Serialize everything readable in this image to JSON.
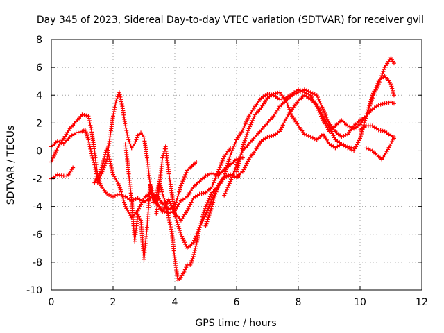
{
  "chart_data": {
    "type": "scatter",
    "title": "Day 345 of 2023, Sidereal Day-to-day VTEC variation (SDTVAR) for receiver gvil",
    "xlabel": "GPS time / hours",
    "ylabel": "SDTVAR / TECUs",
    "xlim": [
      0,
      12
    ],
    "ylim": [
      -10,
      8
    ],
    "xticks": [
      0,
      2,
      4,
      6,
      8,
      10,
      12
    ],
    "yticks": [
      -10,
      -8,
      -6,
      -4,
      -2,
      0,
      2,
      4,
      6,
      8
    ],
    "grid": true,
    "marker": "plus",
    "color": "#ff0000",
    "series": [
      {
        "name": "track-1",
        "x": [
          0.0,
          0.2,
          0.4,
          0.6,
          0.8,
          1.0,
          1.2,
          1.3,
          1.4,
          1.5,
          1.6,
          1.8,
          2.0,
          2.2,
          2.4,
          2.6,
          2.8,
          3.0,
          3.2,
          3.4,
          3.6,
          3.8,
          4.0,
          4.2,
          4.4,
          4.6,
          4.7
        ],
        "y": [
          -0.8,
          0.2,
          0.9,
          1.6,
          2.1,
          2.6,
          2.5,
          1.5,
          0.0,
          -1.8,
          -2.5,
          -3.1,
          -3.3,
          -3.1,
          -3.3,
          -3.6,
          -3.4,
          -3.7,
          -3.4,
          -3.2,
          -3.8,
          -4.2,
          -4.0,
          -2.5,
          -1.4,
          -1.0,
          -0.8
        ]
      },
      {
        "name": "track-2",
        "x": [
          0.0,
          0.2,
          0.4,
          0.6,
          0.8,
          1.0,
          1.1,
          1.2,
          1.3,
          1.4,
          1.5,
          1.6,
          1.8,
          1.9,
          2.0,
          2.1,
          2.2,
          2.3,
          2.4,
          2.5,
          2.6,
          2.7,
          2.8,
          2.9,
          3.0,
          3.1,
          3.2,
          3.4,
          3.6,
          3.8,
          4.0,
          4.2,
          4.4,
          4.6,
          4.8,
          5.0,
          5.2,
          5.4,
          5.6,
          5.8,
          6.0,
          6.2
        ],
        "y": [
          0.3,
          0.7,
          0.5,
          1.0,
          1.3,
          1.4,
          1.5,
          0.8,
          -0.2,
          -1.0,
          -2.3,
          -1.8,
          -0.6,
          1.0,
          2.5,
          3.6,
          4.2,
          3.2,
          1.8,
          0.8,
          0.2,
          0.5,
          1.1,
          1.3,
          1.0,
          -0.5,
          -2.4,
          -3.8,
          -4.3,
          -4.5,
          -4.3,
          -3.6,
          -3.3,
          -2.6,
          -2.2,
          -1.8,
          -1.6,
          -1.8,
          -1.3,
          -1.0,
          -0.6,
          -0.5
        ]
      },
      {
        "name": "track-3",
        "x": [
          0.0,
          0.2,
          0.4,
          0.5,
          0.6,
          0.7
        ],
        "y": [
          -2.0,
          -1.7,
          -1.8,
          -1.8,
          -1.6,
          -1.2
        ]
      },
      {
        "name": "track-4",
        "x": [
          1.4,
          1.6,
          1.8,
          2.0,
          2.2,
          2.4,
          2.6,
          2.8,
          3.0,
          3.2,
          3.4,
          3.6,
          3.8,
          4.0,
          4.2,
          4.4,
          4.6,
          4.8,
          5.0,
          5.2,
          5.4,
          5.6,
          5.8
        ],
        "y": [
          -2.3,
          -1.5,
          0.2,
          -1.7,
          -2.5,
          -4.0,
          -4.8,
          -4.3,
          -3.4,
          -3.0,
          -3.6,
          -4.4,
          -3.5,
          -4.5,
          -5.0,
          -4.3,
          -3.4,
          -3.1,
          -3.0,
          -2.6,
          -1.5,
          -0.4,
          0.2
        ]
      },
      {
        "name": "track-5",
        "x": [
          2.4,
          2.5,
          2.6,
          2.7,
          2.8,
          2.9,
          3.0,
          3.1,
          3.2,
          3.3,
          3.4,
          3.5,
          3.6,
          3.7,
          3.8,
          3.9,
          4.0,
          4.1,
          4.2,
          4.3,
          4.4,
          4.5,
          4.6,
          4.7,
          4.8,
          5.0,
          5.2,
          5.4,
          5.6,
          5.8,
          6.0,
          6.1
        ],
        "y": [
          0.5,
          -1.5,
          -3.5,
          -6.5,
          -4.6,
          -5.0,
          -7.8,
          -5.5,
          -2.5,
          -3.7,
          -3.3,
          -2.2,
          -3.1,
          -3.7,
          -4.8,
          -5.8,
          -7.8,
          -9.3,
          -9.1,
          -8.7,
          -8.2,
          -8.2,
          -7.6,
          -6.7,
          -5.5,
          -4.6,
          -3.5,
          -2.6,
          -1.8,
          -1.7,
          -1.9,
          -1.8
        ]
      },
      {
        "name": "track-6",
        "x": [
          3.4,
          3.5,
          3.6,
          3.7,
          3.8,
          3.9,
          4.0,
          4.1,
          4.2,
          4.4,
          4.6,
          4.8,
          5.0,
          5.2,
          5.4,
          5.6,
          5.8,
          6.0,
          6.2,
          6.4,
          6.6,
          6.8,
          7.0,
          7.2,
          7.4,
          7.6,
          7.8,
          8.0,
          8.2,
          8.4,
          8.6,
          8.8,
          9.0,
          9.2,
          9.4,
          9.6,
          9.8
        ],
        "y": [
          -4.5,
          -2.5,
          -0.5,
          0.3,
          -1.5,
          -3.0,
          -4.6,
          -5.3,
          -6.0,
          -7.0,
          -6.6,
          -5.5,
          -4.0,
          -3.0,
          -2.6,
          -1.9,
          -1.8,
          -1.8,
          -1.5,
          -0.6,
          0.0,
          0.7,
          1.0,
          1.1,
          1.4,
          2.3,
          3.0,
          3.6,
          4.0,
          3.7,
          3.3,
          2.5,
          1.7,
          0.8,
          0.5,
          0.3,
          0.2
        ]
      },
      {
        "name": "track-7",
        "x": [
          5.0,
          5.2,
          5.4,
          5.6,
          5.8,
          6.0,
          6.2,
          6.4,
          6.6,
          6.8,
          7.0,
          7.2,
          7.4,
          7.6,
          7.8,
          8.0,
          8.2,
          8.4,
          8.6,
          8.8,
          9.0,
          9.2,
          9.4,
          9.6,
          9.8,
          10.0,
          10.2,
          10.4,
          10.6,
          10.8,
          11.0,
          11.1
        ],
        "y": [
          -5.4,
          -4.0,
          -2.5,
          -1.8,
          -0.3,
          0.8,
          1.5,
          2.5,
          3.2,
          3.8,
          4.1,
          4.0,
          3.7,
          3.8,
          4.1,
          4.4,
          4.2,
          4.0,
          3.2,
          2.2,
          1.4,
          1.8,
          2.2,
          1.8,
          1.6,
          1.9,
          2.5,
          3.0,
          3.3,
          3.4,
          3.5,
          3.4
        ]
      },
      {
        "name": "track-8",
        "x": [
          5.6,
          5.8,
          6.0,
          6.2,
          6.4,
          6.6,
          6.8,
          7.0,
          7.2,
          7.4,
          7.6,
          7.8,
          8.0,
          8.2,
          8.4,
          8.6,
          8.8,
          9.0,
          9.2,
          9.4,
          9.6,
          9.8,
          10.0,
          10.2,
          10.4,
          10.6,
          10.8,
          11.0,
          11.1
        ],
        "y": [
          -3.2,
          -2.2,
          -1.0,
          0.0,
          0.5,
          1.0,
          1.5,
          2.0,
          2.5,
          3.2,
          3.6,
          4.0,
          4.2,
          4.4,
          4.2,
          4.0,
          3.0,
          2.0,
          1.4,
          1.0,
          1.2,
          1.8,
          2.2,
          2.5,
          4.0,
          5.0,
          5.4,
          4.8,
          4.0
        ]
      },
      {
        "name": "track-9",
        "x": [
          6.0,
          6.2,
          6.4,
          6.6,
          6.8,
          7.0,
          7.2,
          7.4,
          7.6,
          7.8,
          8.0,
          8.2,
          8.4,
          8.6,
          8.8,
          9.0,
          9.2,
          9.4,
          9.6,
          9.8,
          10.0,
          10.2,
          10.4,
          10.6,
          10.8,
          11.0,
          11.1
        ],
        "y": [
          -1.5,
          0.3,
          1.6,
          2.6,
          3.1,
          3.8,
          4.1,
          4.2,
          3.6,
          2.5,
          1.8,
          1.2,
          1.0,
          0.8,
          1.2,
          0.5,
          0.2,
          0.5,
          0.2,
          0.0,
          0.9,
          2.5,
          3.8,
          4.8,
          6.0,
          6.7,
          6.3
        ]
      },
      {
        "name": "track-10",
        "x": [
          10.0,
          10.2,
          10.4,
          10.6,
          10.8,
          11.0,
          11.1
        ],
        "y": [
          1.5,
          1.8,
          1.8,
          1.5,
          1.4,
          1.1,
          0.9
        ]
      },
      {
        "name": "track-11",
        "x": [
          10.2,
          10.4,
          10.6,
          10.7,
          10.8,
          11.0,
          11.1
        ],
        "y": [
          0.2,
          0.0,
          -0.4,
          -0.6,
          -0.3,
          0.5,
          1.0
        ]
      }
    ]
  }
}
